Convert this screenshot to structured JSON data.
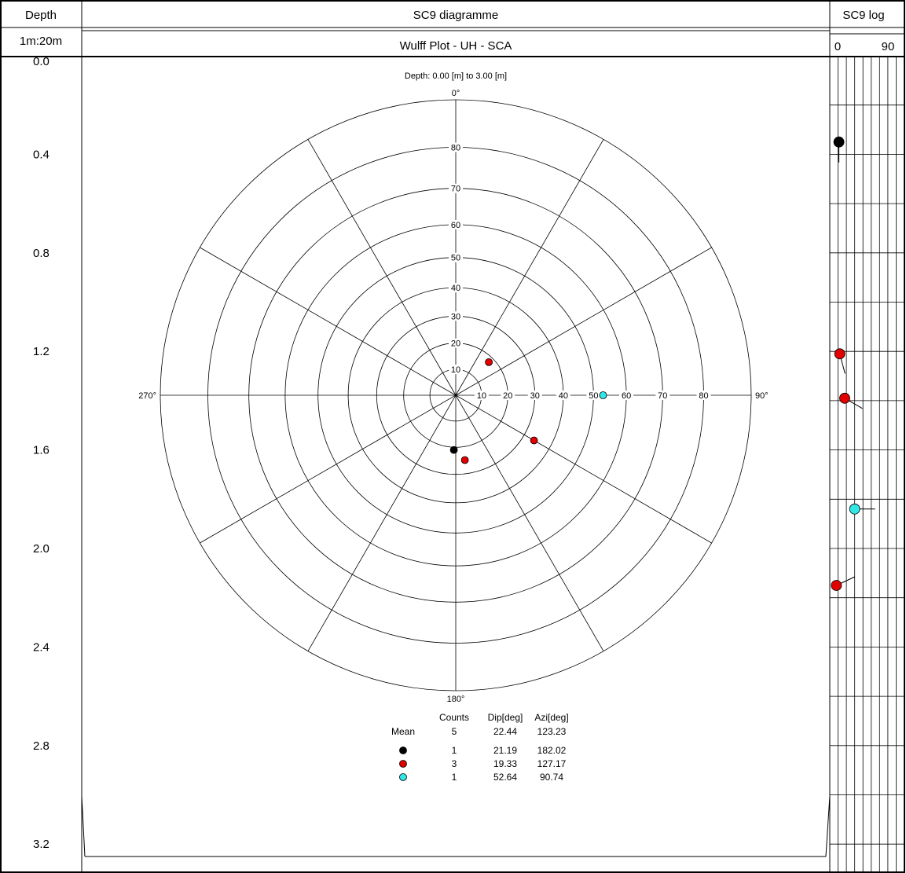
{
  "header": {
    "depth_label": "Depth",
    "scale_label": "1m:20m",
    "diagram_title": "SC9 diagramme",
    "plot_title": "Wulff Plot - UH - SCA",
    "log_title": "SC9 log",
    "log_scale_min": "0",
    "log_scale_max": "90"
  },
  "depth_axis": {
    "top_partial_label": "0.0",
    "ticks": [
      "0.4",
      "0.8",
      "1.2",
      "1.6",
      "2.0",
      "2.4",
      "2.8",
      "3.2"
    ]
  },
  "colors": {
    "black_set": "#000000",
    "red_set": "#e00000",
    "cyan_set": "#33e6e6",
    "grid": "#000000"
  },
  "chart_data": [
    {
      "type": "scatter",
      "projection": "wulff-stereonet",
      "depth_range_label": "Depth: 0.00 [m] to 3.00 [m]",
      "azimuth_labels": [
        "0°",
        "90°",
        "180°",
        "270°"
      ],
      "dip_ring_labels": [
        "10",
        "20",
        "30",
        "40",
        "50",
        "60",
        "70",
        "80"
      ],
      "dip_range": [
        0,
        90
      ],
      "grid": true,
      "poles": [
        {
          "set": "black",
          "azimuth": 182,
          "dip": 21
        },
        {
          "set": "red",
          "azimuth": 172,
          "dip": 25
        },
        {
          "set": "red",
          "azimuth": 120,
          "dip": 34
        },
        {
          "set": "red",
          "azimuth": 45,
          "dip": 18
        },
        {
          "set": "cyan",
          "azimuth": 90,
          "dip": 53
        }
      ],
      "statistics": {
        "headers": [
          "Counts",
          "Dip[deg]",
          "Azi[deg]"
        ],
        "mean": {
          "label": "Mean",
          "counts": "5",
          "dip": "22.44",
          "azi": "123.23"
        },
        "sets": [
          {
            "set": "black",
            "counts": "1",
            "dip": "21.19",
            "azi": "182.02"
          },
          {
            "set": "red",
            "counts": "3",
            "dip": "19.33",
            "azi": "127.17"
          },
          {
            "set": "cyan",
            "counts": "1",
            "dip": "52.64",
            "azi": "90.74"
          }
        ]
      }
    },
    {
      "type": "tadpole-log",
      "x_label_min": "0",
      "x_label_max": "90",
      "xlim": [
        0,
        90
      ],
      "ylim": [
        0,
        3.3
      ],
      "points": [
        {
          "set": "black",
          "depth": 0.35,
          "dip": 11,
          "azimuth": 180
        },
        {
          "set": "red",
          "depth": 1.21,
          "dip": 12,
          "azimuth": 165
        },
        {
          "set": "red",
          "depth": 1.39,
          "dip": 18,
          "azimuth": 120
        },
        {
          "set": "cyan",
          "depth": 1.84,
          "dip": 30,
          "azimuth": 90
        },
        {
          "set": "red",
          "depth": 2.15,
          "dip": 8,
          "azimuth": 65
        }
      ]
    }
  ]
}
